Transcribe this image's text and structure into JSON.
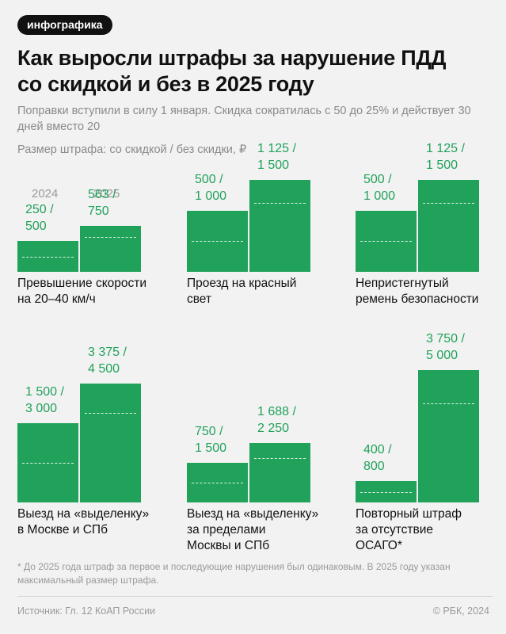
{
  "badge": "инфографика",
  "title": "Как выросли штрафы за нарушение ПДД\nсо скидкой и без в 2025 году",
  "subtitle": "Поправки вступили в силу 1 января. Скидка сократилась с 50 до 25% и действует 30 дней вместо 20",
  "scale_note": "Размер штрафа: со скидкой / без скидки, ₽",
  "footnote": "* До 2025 года штраф за первое и последующие нарушения был одинаковым. В 2025 году указан максимальный размер штрафа.",
  "source": "Источник: Гл. 12 КоАП России",
  "copyright": "© РБК, 2024",
  "colors": {
    "bar": "#21a25b",
    "background": "#f2f2f2"
  },
  "chart_data": {
    "type": "bar",
    "years": [
      "2024",
      "2025"
    ],
    "unit": "₽",
    "groups": [
      {
        "label": "Превышение скорости\nна 20–40 км/ч",
        "bars": [
          {
            "year": "2024",
            "discounted": 250,
            "full": 500,
            "label": "250 /\n500"
          },
          {
            "year": "2025",
            "discounted": 563,
            "full": 750,
            "label": "563 /\n750"
          }
        ]
      },
      {
        "label": "Проезд на красный\nсвет",
        "bars": [
          {
            "year": "2024",
            "discounted": 500,
            "full": 1000,
            "label": "500 /\n1 000"
          },
          {
            "year": "2025",
            "discounted": 1125,
            "full": 1500,
            "label": "1 125 /\n1 500"
          }
        ]
      },
      {
        "label": "Непристегнутый\nремень безопасности",
        "bars": [
          {
            "year": "2024",
            "discounted": 500,
            "full": 1000,
            "label": "500 /\n1 000"
          },
          {
            "year": "2025",
            "discounted": 1125,
            "full": 1500,
            "label": "1 125 /\n1 500"
          }
        ]
      },
      {
        "label": "Выезд на «выделенку»\nв Москве и СПб",
        "bars": [
          {
            "year": "2024",
            "discounted": 1500,
            "full": 3000,
            "label": "1 500 /\n3 000"
          },
          {
            "year": "2025",
            "discounted": 3375,
            "full": 4500,
            "label": "3 375 /\n4 500"
          }
        ]
      },
      {
        "label": "Выезд на «выделенку»\nза пределами\nМосквы и СПб",
        "bars": [
          {
            "year": "2024",
            "discounted": 750,
            "full": 1500,
            "label": "750 /\n1 500"
          },
          {
            "year": "2025",
            "discounted": 1688,
            "full": 2250,
            "label": "1 688 /\n2 250"
          }
        ]
      },
      {
        "label": "Повторный штраф\nза отсутствие\nОСАГО*",
        "bars": [
          {
            "year": "2024",
            "discounted": 400,
            "full": 800,
            "label": "400 /\n800"
          },
          {
            "year": "2025",
            "discounted": 3750,
            "full": 5000,
            "label": "3 750 /\n5 000"
          }
        ]
      }
    ]
  }
}
